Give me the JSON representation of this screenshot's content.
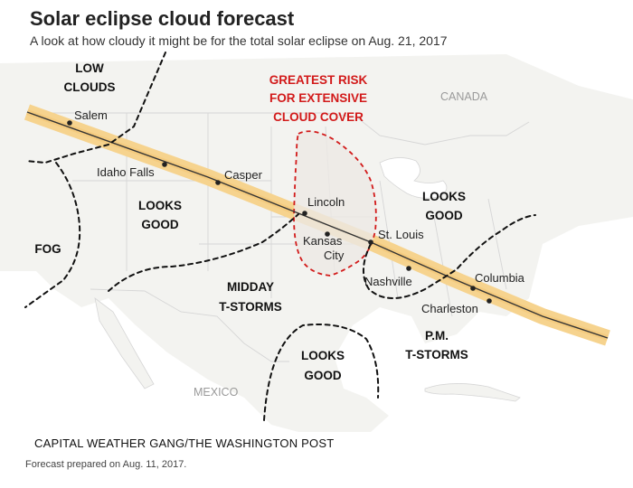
{
  "header": {
    "title": "Solar eclipse cloud forecast",
    "subtitle": "A look at how cloudy it might be for the total solar eclipse on Aug. 21, 2017"
  },
  "map": {
    "countries": {
      "canada": "CANADA",
      "mexico": "MEXICO"
    },
    "regions": {
      "low_clouds_1": "LOW",
      "low_clouds_2": "CLOUDS",
      "fog": "FOG",
      "looks_good_west_1": "LOOKS",
      "looks_good_west_2": "GOOD",
      "midday_tstorms_1": "MIDDAY",
      "midday_tstorms_2": "T-STORMS",
      "looks_good_south_1": "LOOKS",
      "looks_good_south_2": "GOOD",
      "looks_good_east_1": "LOOKS",
      "looks_good_east_2": "GOOD",
      "pm_tstorms_1": "P.M.",
      "pm_tstorms_2": "T-STORMS"
    },
    "risk_label": {
      "line1": "GREATEST RISK",
      "line2": "FOR EXTENSIVE",
      "line3": "CLOUD COVER"
    },
    "cities": {
      "salem": "Salem",
      "idaho_falls": "Idaho Falls",
      "casper": "Casper",
      "lincoln": "Lincoln",
      "kansas_city_1": "Kansas",
      "kansas_city_2": "City",
      "st_louis": "St. Louis",
      "nashville": "Nashville",
      "columbia": "Columbia",
      "charleston": "Charleston"
    },
    "colors": {
      "eclipse_path": "#f6d38e",
      "eclipse_centerline": "#333333",
      "risk_boundary": "#d21a1a",
      "risk_fill": "#f1eeea",
      "land": "#f3f3f0",
      "water": "#ffffff",
      "border": "#d6d6d6",
      "forecast_boundary": "#111111"
    }
  },
  "footer": {
    "credit": "CAPITAL WEATHER GANG/THE WASHINGTON POST",
    "note": "Forecast prepared on Aug. 11, 2017."
  }
}
